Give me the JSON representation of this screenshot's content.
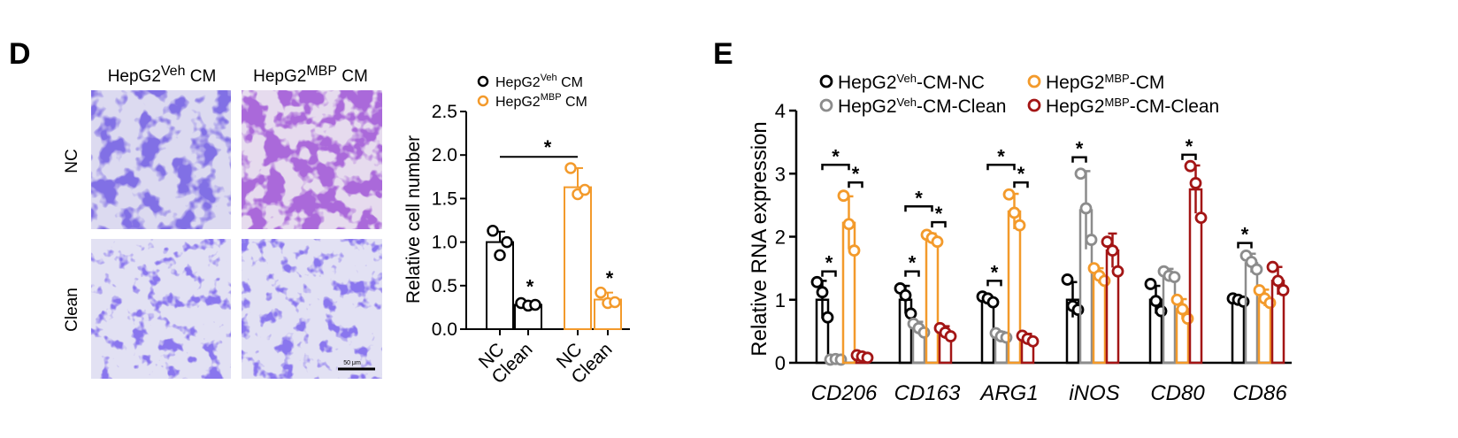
{
  "panel_d": {
    "letter": "D",
    "micrographs": {
      "col_labels": [
        {
          "base": "HepG2",
          "sup": "Veh",
          "tail": " CM"
        },
        {
          "base": "HepG2",
          "sup": "MBP",
          "tail": " CM"
        }
      ],
      "row_labels": [
        "NC",
        "Clean"
      ],
      "scale_bar_label": "50 μm"
    }
  },
  "panel_e": {
    "letter": "E"
  },
  "chart_data": [
    {
      "type": "bar",
      "panel": "D",
      "ylabel": "Relative cell number",
      "ylim": [
        0,
        2.5
      ],
      "yticks": [
        "0.0",
        "0.5",
        "1.0",
        "1.5",
        "2.0",
        "2.5"
      ],
      "categories": [
        "NC",
        "Clean",
        "NC",
        "Clean"
      ],
      "legend": [
        {
          "base": "HepG2",
          "sup": "Veh",
          "tail": " CM",
          "color": "#000000"
        },
        {
          "base": "HepG2",
          "sup": "MBP",
          "tail": " CM",
          "color": "#F39A2B"
        }
      ],
      "bars": [
        {
          "group": 0,
          "value": 1.0,
          "err": 0.12,
          "points": [
            1.13,
            0.85,
            1.0
          ],
          "color": "#000000"
        },
        {
          "group": 0,
          "value": 0.28,
          "err": 0.03,
          "points": [
            0.3,
            0.27,
            0.28
          ],
          "color": "#000000"
        },
        {
          "group": 1,
          "value": 1.63,
          "err": 0.22,
          "points": [
            1.85,
            1.55,
            1.6
          ],
          "color": "#F39A2B"
        },
        {
          "group": 1,
          "value": 0.34,
          "err": 0.08,
          "points": [
            0.42,
            0.3,
            0.31
          ],
          "color": "#F39A2B"
        }
      ],
      "significance": [
        {
          "type": "bracket",
          "from": 0,
          "to": 2,
          "y": 2.0,
          "label": "*"
        },
        {
          "type": "star",
          "bar": 1,
          "y": 0.45,
          "label": "*"
        },
        {
          "type": "star",
          "bar": 3,
          "y": 0.55,
          "label": "*"
        }
      ]
    },
    {
      "type": "bar",
      "panel": "E",
      "ylabel": "Relative RNA expression",
      "ylim": [
        0,
        4
      ],
      "yticks": [
        "0",
        "1",
        "2",
        "3",
        "4"
      ],
      "categories": [
        "CD206",
        "CD163",
        "ARG1",
        "iNOS",
        "CD80",
        "CD86"
      ],
      "series": [
        {
          "base": "HepG2",
          "sup": "Veh",
          "tail": "-CM-NC",
          "color": "#000000",
          "values": [
            1.0,
            1.0,
            1.0,
            1.0,
            1.0,
            1.0
          ],
          "errs": [
            0.3,
            0.22,
            0.06,
            0.28,
            0.22,
            0.05
          ],
          "points": [
            [
              1.28,
              1.12,
              0.72
            ],
            [
              1.18,
              1.07,
              0.78
            ],
            [
              1.05,
              1.02,
              0.96
            ],
            [
              1.32,
              0.9,
              0.84
            ],
            [
              1.25,
              0.98,
              0.82
            ],
            [
              1.02,
              1.0,
              0.97
            ]
          ]
        },
        {
          "base": "HepG2",
          "sup": "Veh",
          "tail": "-CM-Clean",
          "color": "#8C8C8C",
          "values": [
            0.05,
            0.55,
            0.43,
            2.42,
            1.4,
            1.58
          ],
          "errs": [
            0.01,
            0.1,
            0.06,
            0.62,
            0.09,
            0.15
          ],
          "points": [
            [
              0.05,
              0.06,
              0.05
            ],
            [
              0.62,
              0.55,
              0.48
            ],
            [
              0.47,
              0.42,
              0.4
            ],
            [
              3.0,
              2.45,
              1.95
            ],
            [
              1.45,
              1.38,
              1.36
            ],
            [
              1.7,
              1.6,
              1.48
            ]
          ]
        },
        {
          "base": "HepG2",
          "sup": "MBP",
          "tail": "-CM",
          "color": "#F39A2B",
          "values": [
            2.22,
            1.97,
            2.4,
            1.38,
            0.85,
            1.03
          ],
          "errs": [
            0.42,
            0.08,
            0.28,
            0.12,
            0.16,
            0.13
          ],
          "points": [
            [
              2.65,
              2.2,
              1.78
            ],
            [
              2.03,
              1.98,
              1.92
            ],
            [
              2.67,
              2.38,
              2.18
            ],
            [
              1.5,
              1.38,
              1.3
            ],
            [
              1.0,
              0.85,
              0.7
            ],
            [
              1.15,
              1.02,
              0.95
            ]
          ]
        },
        {
          "base": "HepG2",
          "sup": "MBP",
          "tail": "-CM-Clean",
          "color": "#A31515",
          "values": [
            0.1,
            0.48,
            0.38,
            1.78,
            2.75,
            1.3
          ],
          "errs": [
            0.03,
            0.1,
            0.08,
            0.27,
            0.38,
            0.22
          ],
          "points": [
            [
              0.12,
              0.1,
              0.08
            ],
            [
              0.55,
              0.48,
              0.42
            ],
            [
              0.43,
              0.38,
              0.34
            ],
            [
              1.92,
              1.78,
              1.45
            ],
            [
              3.12,
              2.85,
              2.3
            ],
            [
              1.52,
              1.3,
              1.15
            ]
          ]
        }
      ],
      "significance": [
        {
          "group": 0,
          "from": 0,
          "to": 1,
          "y": 1.45,
          "label": "*"
        },
        {
          "group": 0,
          "from": 0,
          "to": 2,
          "y": 3.14,
          "label": "*"
        },
        {
          "group": 0,
          "from": 2,
          "to": 3,
          "y": 2.86,
          "label": "*"
        },
        {
          "group": 1,
          "from": 0,
          "to": 1,
          "y": 1.45,
          "label": "*"
        },
        {
          "group": 1,
          "from": 0,
          "to": 2,
          "y": 2.48,
          "label": "*"
        },
        {
          "group": 1,
          "from": 2,
          "to": 3,
          "y": 2.23,
          "label": "*"
        },
        {
          "group": 2,
          "from": 0,
          "to": 1,
          "y": 1.3,
          "label": "*"
        },
        {
          "group": 2,
          "from": 0,
          "to": 2,
          "y": 3.14,
          "label": "*"
        },
        {
          "group": 2,
          "from": 2,
          "to": 3,
          "y": 2.86,
          "label": "*"
        },
        {
          "group": 3,
          "from": 0,
          "to": 1,
          "y": 3.26,
          "label": "*"
        },
        {
          "group": 4,
          "from": 2,
          "to": 3,
          "y": 3.3,
          "label": "*"
        },
        {
          "group": 5,
          "from": 0,
          "to": 1,
          "y": 1.9,
          "label": "*"
        }
      ]
    }
  ]
}
